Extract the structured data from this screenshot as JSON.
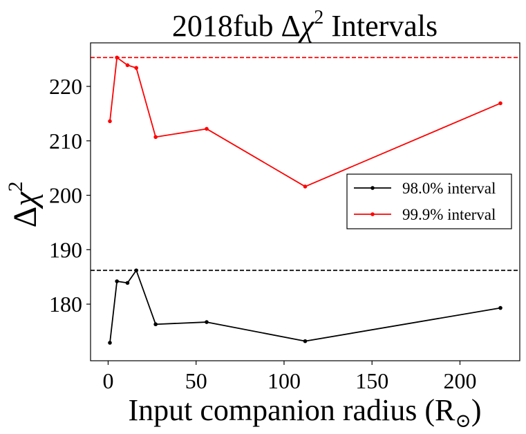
{
  "chart_data": {
    "type": "line",
    "title": "2018fub Δχ² Intervals",
    "title_parts": {
      "prefix": "2018fub Δ",
      "chi": "χ",
      "power": "2",
      "suffix": " Intervals"
    },
    "xlabel": "Input companion radius (R⊙)",
    "xlabel_parts": {
      "main": "Input companion radius (R",
      "sub": "⊙",
      "close": ")"
    },
    "ylabel": "Δχ²",
    "ylabel_parts": {
      "delta": "Δ",
      "chi": "χ",
      "power": "2"
    },
    "xlim": [
      -10,
      234
    ],
    "ylim": [
      169.6,
      228.0
    ],
    "xticks": [
      0,
      50,
      100,
      150,
      200
    ],
    "yticks": [
      180,
      190,
      200,
      210,
      220
    ],
    "legend_position": "center-right",
    "x": [
      1,
      5,
      11,
      16,
      27,
      56,
      112,
      223
    ],
    "series": [
      {
        "name": "98.0% interval",
        "color": "#000000",
        "values": [
          172.9,
          184.2,
          183.9,
          186.2,
          176.3,
          176.7,
          173.2,
          179.3
        ],
        "threshold": 186.2
      },
      {
        "name": "99.9% interval",
        "color": "#ff0000",
        "values": [
          213.6,
          225.3,
          223.9,
          223.4,
          210.7,
          212.2,
          201.6,
          216.9
        ],
        "threshold": 225.3
      }
    ]
  }
}
